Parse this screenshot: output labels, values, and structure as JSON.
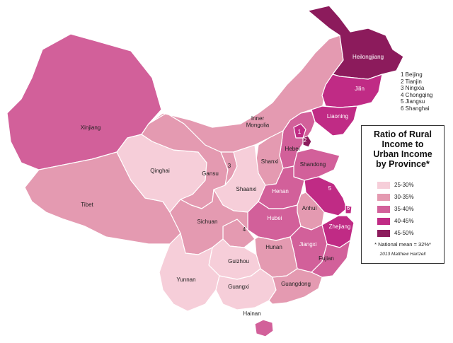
{
  "colors": {
    "c25_30": "#f6ced9",
    "c30_35": "#e49ab1",
    "c35_40": "#d2609a",
    "c40_45": "#c02b85",
    "c45_50": "#8c1b5c"
  },
  "provinces": {
    "heilongjiang": {
      "label": "Heilongjiang",
      "bracket": "45-50%"
    },
    "jilin": {
      "label": "Jilin",
      "bracket": "40-45%"
    },
    "liaoning": {
      "label": "Liaoning",
      "bracket": "40-45%"
    },
    "inner_mongolia": {
      "label": "Inner\nMongolia",
      "bracket": "30-35%"
    },
    "xinjiang": {
      "label": "Xinjiang",
      "bracket": "35-40%"
    },
    "tibet": {
      "label": "Tibet",
      "bracket": "30-35%"
    },
    "qinghai": {
      "label": "Qinghai",
      "bracket": "25-30%"
    },
    "gansu": {
      "label": "Gansu",
      "bracket": "30-35%"
    },
    "ningxia": {
      "label": "3",
      "bracket": "30-35%"
    },
    "shaanxi": {
      "label": "Shaanxi",
      "bracket": "25-30%"
    },
    "shanxi": {
      "label": "Shanxi",
      "bracket": "30-35%"
    },
    "hebei": {
      "label": "Hebei",
      "bracket": "35-40%"
    },
    "beijing": {
      "label": "1",
      "bracket": "40-45%"
    },
    "tianjin": {
      "label": "2",
      "bracket": "45-50%"
    },
    "shandong": {
      "label": "Shandong",
      "bracket": "35-40%"
    },
    "henan": {
      "label": "Henan",
      "bracket": "35-40%"
    },
    "jiangsu": {
      "label": "5",
      "bracket": "40-45%"
    },
    "shanghai": {
      "label": "6",
      "bracket": "40-45%"
    },
    "anhui": {
      "label": "Anhui",
      "bracket": "30-35%"
    },
    "hubei": {
      "label": "Hubei",
      "bracket": "35-40%"
    },
    "zhejiang": {
      "label": "Zhejiang",
      "bracket": "40-45%"
    },
    "sichuan": {
      "label": "Sichuan",
      "bracket": "30-35%"
    },
    "chongqing": {
      "label": "4",
      "bracket": "30-35%"
    },
    "hunan": {
      "label": "Hunan",
      "bracket": "30-35%"
    },
    "jiangxi": {
      "label": "Jiangxi",
      "bracket": "35-40%"
    },
    "fujian": {
      "label": "Fujian",
      "bracket": "35-40%"
    },
    "guizhou": {
      "label": "Guizhou",
      "bracket": "25-30%"
    },
    "yunnan": {
      "label": "Yunnan",
      "bracket": "25-30%"
    },
    "guangxi": {
      "label": "Guangxi",
      "bracket": "25-30%"
    },
    "guangdong": {
      "label": "Guangdong",
      "bracket": "30-35%"
    },
    "hainan": {
      "label": "Hainan",
      "bracket": "35-40%"
    }
  },
  "number_key": [
    "1 Beijing",
    "2 Tianjin",
    "3 Ningxia",
    "4 Chongqing",
    "5 Jiangsu",
    "6 Shanghai"
  ],
  "legend": {
    "title": "Ratio of Rural\nIncome to\nUrban Income\nby Province*",
    "items": [
      "25-30%",
      "30-35%",
      "35-40%",
      "40-45%",
      "45-50%"
    ],
    "mean_note": "* National mean =  32%*",
    "credit": "2013 Matthew Hartzell"
  }
}
